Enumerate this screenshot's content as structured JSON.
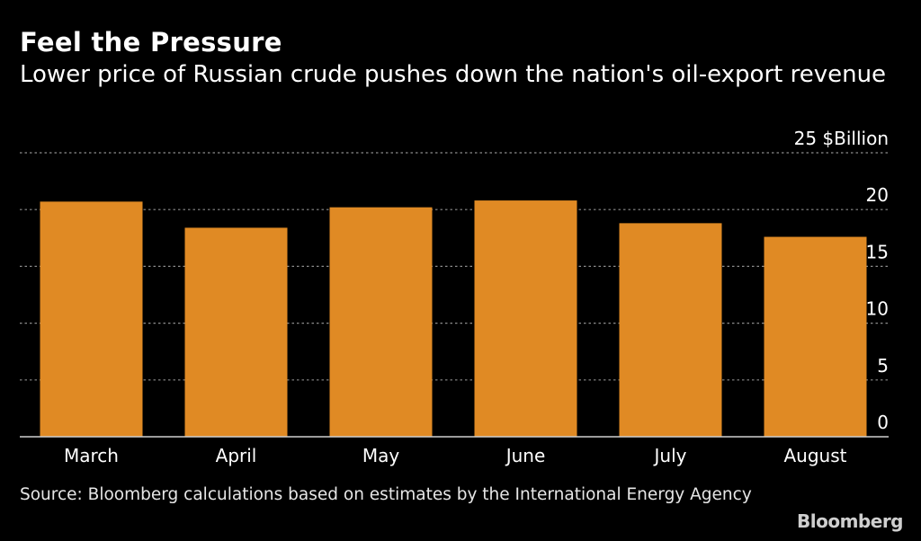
{
  "chart_data": {
    "type": "bar",
    "title": "Feel the Pressure",
    "subtitle": "Lower price of Russian crude pushes down the nation's oil-export revenue",
    "unit": "$Billion",
    "categories": [
      "March",
      "April",
      "May",
      "June",
      "July",
      "August"
    ],
    "values": [
      20.7,
      18.4,
      20.2,
      20.8,
      18.8,
      17.6
    ],
    "ylim": [
      0,
      25
    ],
    "yticks": [
      0,
      5,
      10,
      15,
      20,
      25
    ],
    "grid": true,
    "bar_color": "#e08a24",
    "grid_color": "#8c8c8c",
    "source": "Source: Bloomberg calculations based on estimates by the International Energy Agency",
    "brand": "Bloomberg"
  }
}
